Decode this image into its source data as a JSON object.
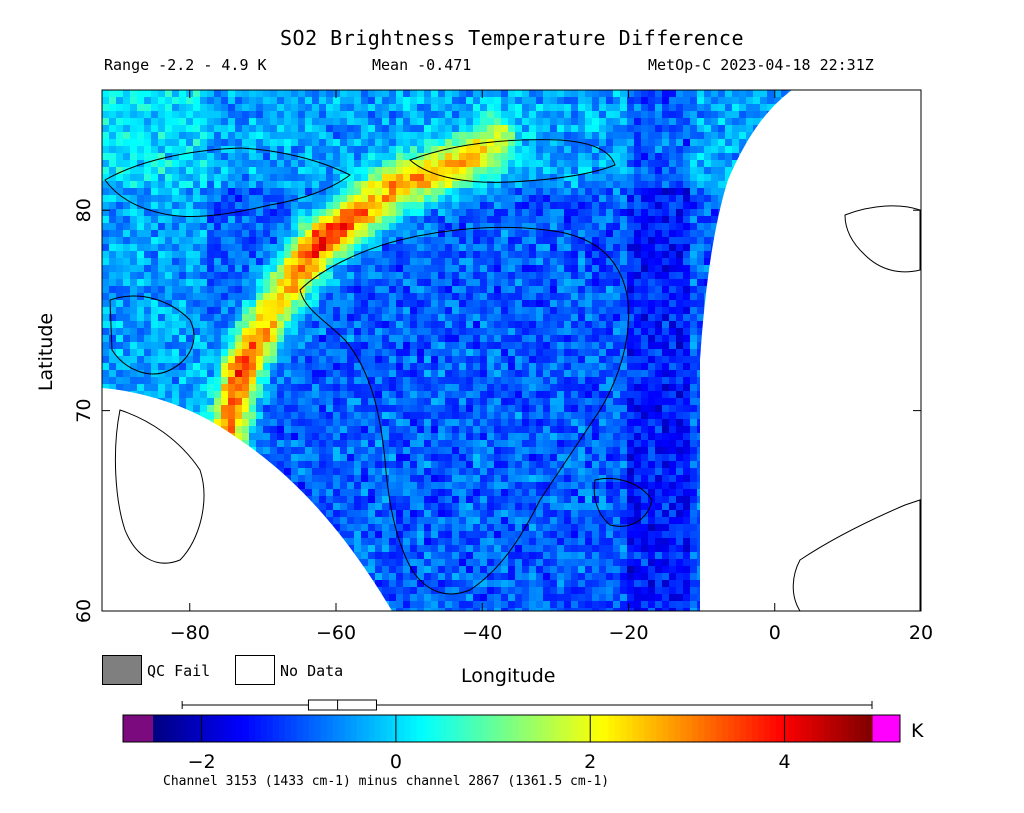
{
  "chart_data": {
    "type": "heatmap",
    "title": "SO2 Brightness Temperature Difference",
    "stats": {
      "range": "Range -2.2 - 4.9 K",
      "mean": "Mean -0.471",
      "satellite_time": "MetOp-C 2023-04-18 22:31Z"
    },
    "xlabel": "Longitude",
    "ylabel": "Latitude",
    "xlim": [
      -92,
      20
    ],
    "ylim": [
      60,
      86
    ],
    "x_ticks": [
      -80,
      -60,
      -40,
      -20,
      0,
      20
    ],
    "y_ticks": [
      60,
      70,
      80
    ],
    "x_tick_labels": [
      "−80",
      "−60",
      "−40",
      "−20",
      "0",
      "20"
    ],
    "y_tick_labels": [
      "60",
      "70",
      "80"
    ],
    "colorbar": {
      "min": -2.5,
      "max": 4.9,
      "ticks": [
        -2,
        0,
        2,
        4
      ],
      "tick_labels": [
        "−2",
        "0",
        "2",
        "4"
      ],
      "unit": "K",
      "underflow_color": "#7b0a7f",
      "overflow_color": "#ff00ff",
      "boxplot": {
        "min": -2.2,
        "q1": -0.9,
        "median": -0.6,
        "q3": -0.2,
        "max": 4.9
      }
    },
    "plume_band": {
      "description_value": "high BTD band",
      "points": [
        [
          -75,
          68.5
        ],
        [
          -73,
          72
        ],
        [
          -68,
          75.5
        ],
        [
          -62,
          78.5
        ],
        [
          -52,
          81
        ],
        [
          -42,
          82.5
        ],
        [
          -38,
          83.5
        ]
      ],
      "peak_values": [
        3.6,
        4.6,
        3.2,
        4.9,
        3.4,
        2.8,
        2.4
      ]
    },
    "footnote": "Channel 3153 (1433 cm-1) minus channel 2867 (1361.5 cm-1)"
  },
  "legend": {
    "qc_fail": "QC Fail",
    "no_data": "No Data",
    "qc_color": "#7f7f7f"
  }
}
